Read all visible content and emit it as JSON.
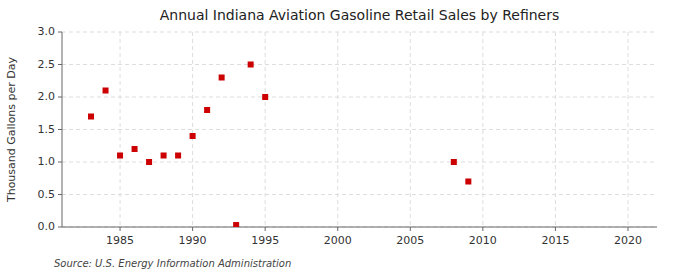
{
  "chart_data": {
    "type": "scatter",
    "title": "Annual Indiana Aviation Gasoline Retail Sales by Refiners",
    "ylabel": "Thousand Gallons per Day",
    "annotations": [
      "Source: U.S. Energy Information Administration"
    ],
    "x": [
      1983,
      1984,
      1985,
      1986,
      1987,
      1988,
      1989,
      1990,
      1991,
      1992,
      1993,
      1994,
      1995,
      2008,
      2009
    ],
    "values": [
      1.7,
      2.1,
      1.1,
      1.2,
      1.0,
      1.1,
      1.1,
      1.4,
      1.8,
      2.3,
      0.03,
      2.5,
      2.0,
      1.0,
      0.7
    ],
    "color": "#cc0000",
    "marker": "square",
    "xlim": [
      1981,
      2022
    ],
    "ylim": [
      0.0,
      3.0
    ],
    "xticks": [
      1985,
      1990,
      1995,
      2000,
      2005,
      2010,
      2015,
      2020
    ],
    "yticks": [
      {
        "value": 0.0,
        "label": "0.0"
      },
      0.5,
      {
        "value": 1.0,
        "label": "1.0"
      },
      1.5,
      {
        "value": 2.0,
        "label": "2.0"
      },
      2.5,
      {
        "value": 3.0,
        "label": "3.0"
      }
    ],
    "grid": true
  }
}
